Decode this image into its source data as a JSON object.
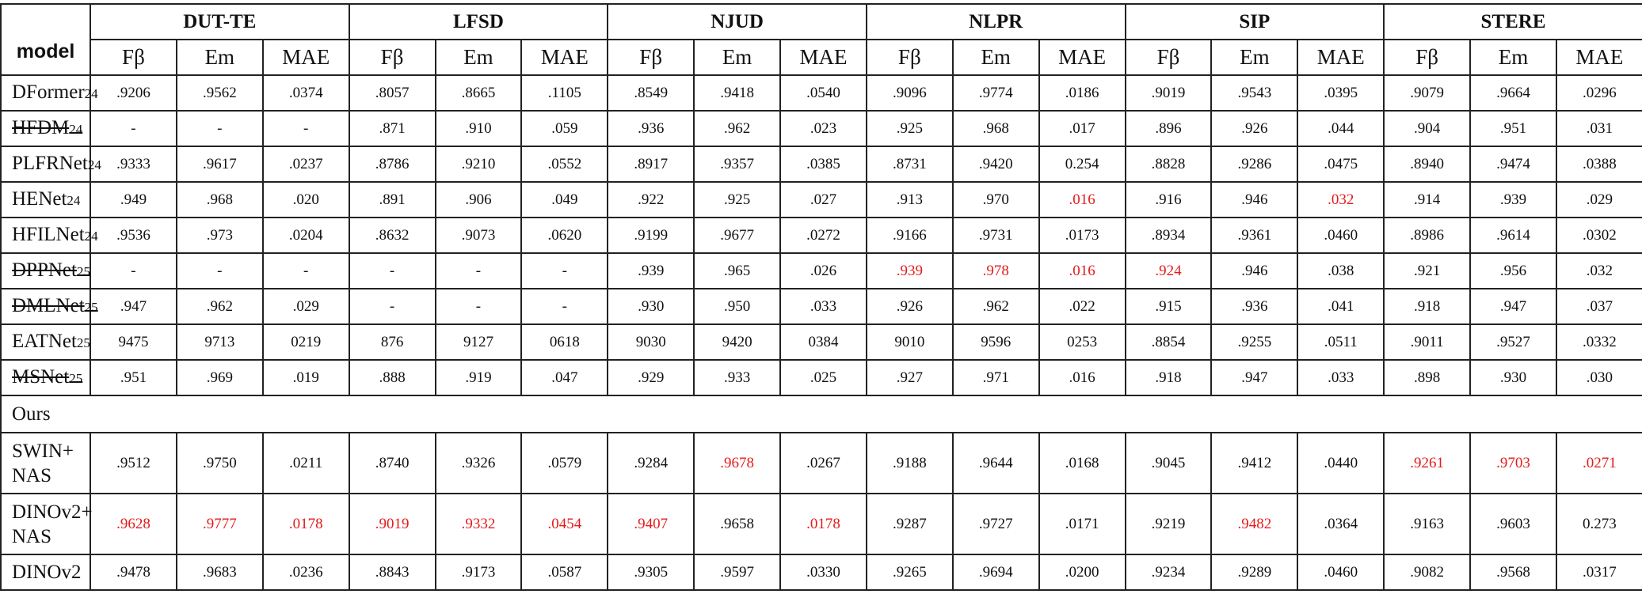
{
  "header": {
    "model_label": "model",
    "datasets": [
      "DUT-TE",
      "LFSD",
      "NJUD",
      "NLPR",
      "SIP",
      "STERE"
    ],
    "metrics": [
      "Fβ",
      "Em",
      "MAE"
    ]
  },
  "rows": [
    {
      "name": "DFormer",
      "sub": "24",
      "strike": false,
      "values": [
        ".9206",
        ".9562",
        ".0374",
        ".8057",
        ".8665",
        ".1105",
        ".8549",
        ".9418",
        ".0540",
        ".9096",
        ".9774",
        ".0186",
        ".9019",
        ".9543",
        ".0395",
        ".9079",
        ".9664",
        ".0296"
      ],
      "red": []
    },
    {
      "name": "HFDM",
      "sub": "24",
      "strike": true,
      "values": [
        "-",
        "-",
        "-",
        ".871",
        ".910",
        ".059",
        ".936",
        ".962",
        ".023",
        ".925",
        ".968",
        ".017",
        ".896",
        ".926",
        ".044",
        ".904",
        ".951",
        ".031"
      ],
      "red": []
    },
    {
      "name": "PLFRNet",
      "sub": "24",
      "strike": false,
      "values": [
        ".9333",
        ".9617",
        ".0237",
        ".8786",
        ".9210",
        ".0552",
        ".8917",
        ".9357",
        ".0385",
        ".8731",
        ".9420",
        "0.254",
        ".8828",
        ".9286",
        ".0475",
        ".8940",
        ".9474",
        ".0388"
      ],
      "red": []
    },
    {
      "name": "HENet",
      "sub": "24",
      "strike": false,
      "values": [
        ".949",
        ".968",
        ".020",
        ".891",
        ".906",
        ".049",
        ".922",
        ".925",
        ".027",
        ".913",
        ".970",
        ".016",
        ".916",
        ".946",
        ".032",
        ".914",
        ".939",
        ".029"
      ],
      "red": [
        11,
        14
      ]
    },
    {
      "name": "HFILNet",
      "sub": "24",
      "strike": false,
      "values": [
        ".9536",
        ".973",
        ".0204",
        ".8632",
        ".9073",
        ".0620",
        ".9199",
        ".9677",
        ".0272",
        ".9166",
        ".9731",
        ".0173",
        ".8934",
        ".9361",
        ".0460",
        ".8986",
        ".9614",
        ".0302"
      ],
      "red": []
    },
    {
      "name": "DPPNet",
      "sub": "25",
      "strike": true,
      "values": [
        "-",
        "-",
        "-",
        "-",
        "-",
        "-",
        ".939",
        ".965",
        ".026",
        ".939",
        ".978",
        ".016",
        ".924",
        ".946",
        ".038",
        ".921",
        ".956",
        ".032"
      ],
      "red": [
        9,
        10,
        11,
        12
      ]
    },
    {
      "name": "DMLNet",
      "sub": "25",
      "strike": true,
      "values": [
        ".947",
        ".962",
        ".029",
        "-",
        "-",
        "-",
        ".930",
        ".950",
        ".033",
        ".926",
        ".962",
        ".022",
        ".915",
        ".936",
        ".041",
        ".918",
        ".947",
        ".037"
      ],
      "red": []
    },
    {
      "name": "EATNet",
      "sub": "25",
      "strike": false,
      "values": [
        "9475",
        "9713",
        "0219",
        "876",
        "9127",
        "0618",
        "9030",
        "9420",
        "0384",
        "9010",
        "9596",
        "0253",
        ".8854",
        ".9255",
        ".0511",
        ".9011",
        ".9527",
        ".0332"
      ],
      "red": []
    },
    {
      "name": "MSNet",
      "sub": "25",
      "strike": true,
      "values": [
        ".951",
        ".969",
        ".019",
        ".888",
        ".919",
        ".047",
        ".929",
        ".933",
        ".025",
        ".927",
        ".971",
        ".016",
        ".918",
        ".947",
        ".033",
        ".898",
        ".930",
        ".030"
      ],
      "red": []
    }
  ],
  "ours_label": "Ours",
  "ours_rows": [
    {
      "line1": "SWIN+",
      "line2": "NAS",
      "values": [
        ".9512",
        ".9750",
        ".0211",
        ".8740",
        ".9326",
        ".0579",
        ".9284",
        ".9678",
        ".0267",
        ".9188",
        ".9644",
        ".0168",
        ".9045",
        ".9412",
        ".0440",
        ".9261",
        ".9703",
        ".0271"
      ],
      "red": [
        7,
        15,
        16,
        17
      ]
    },
    {
      "line1": "DINOv2+",
      "line2": "NAS",
      "values": [
        ".9628",
        ".9777",
        ".0178",
        ".9019",
        ".9332",
        ".0454",
        ".9407",
        ".9658",
        ".0178",
        ".9287",
        ".9727",
        ".0171",
        ".9219",
        ".9482",
        ".0364",
        ".9163",
        ".9603",
        "0.273"
      ],
      "red": [
        0,
        1,
        2,
        3,
        4,
        5,
        6,
        8,
        13
      ]
    },
    {
      "line1": "DINOv2",
      "line2": "",
      "values": [
        ".9478",
        ".9683",
        ".0236",
        ".8843",
        ".9173",
        ".0587",
        ".9305",
        ".9597",
        ".0330",
        ".9265",
        ".9694",
        ".0200",
        ".9234",
        ".9289",
        ".0460",
        ".9082",
        ".9568",
        ".0317"
      ],
      "red": []
    }
  ],
  "colors": {
    "highlight": "#e31b1b",
    "border": "#222222",
    "text": "#111111"
  }
}
